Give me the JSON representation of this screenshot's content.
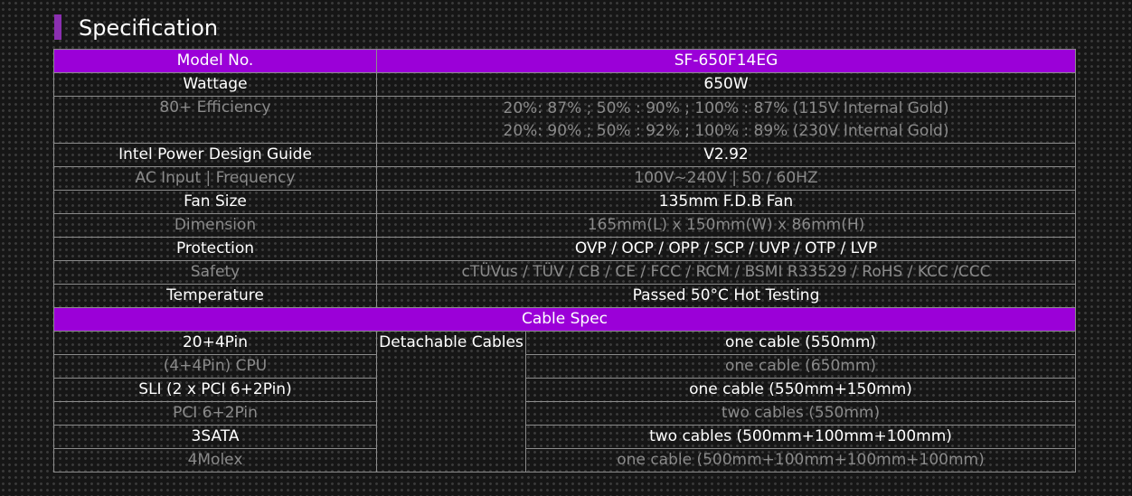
{
  "title": "Specification",
  "colors": {
    "accent": "#9b00d8",
    "bright_text": "#ffffff",
    "dim_text": "#8a8a8a"
  },
  "spec_rows": [
    {
      "label": "Model No.",
      "value": [
        "SF-650F14EG"
      ]
    },
    {
      "label": "Wattage",
      "value": [
        "650W"
      ]
    },
    {
      "label": "80+ Efficiency",
      "value": [
        "20%: 87% ; 50% : 90% ; 100% : 87% (115V Internal Gold)",
        "20%: 90% ; 50% : 92% ; 100% : 89% (230V Internal Gold)"
      ]
    },
    {
      "label": "Intel Power Design Guide",
      "value": [
        "V2.92"
      ]
    },
    {
      "label": "AC Input | Frequency",
      "value": [
        "100V~240V | 50 / 60HZ"
      ]
    },
    {
      "label": "Fan Size",
      "value": [
        "135mm F.D.B Fan"
      ]
    },
    {
      "label": "Dimension",
      "value": [
        "165mm(L) x 150mm(W) x 86mm(H)"
      ]
    },
    {
      "label": "Protection",
      "value": [
        "OVP / OCP / OPP / SCP / UVP / OTP / LVP"
      ]
    },
    {
      "label": "Safety",
      "value": [
        "cTÜVus / TÜV / CB / CE / FCC / RCM / BSMI R33529 / RoHS / KCC /CCC"
      ]
    },
    {
      "label": "Temperature",
      "value": [
        "Passed 50°C Hot Testing"
      ]
    }
  ],
  "cable_header": "Cable Spec",
  "cable_group_label": "Detachable Cables",
  "cable_rows": [
    {
      "connector": "20+4Pin",
      "spec": "one cable (550mm)"
    },
    {
      "connector": "(4+4Pin) CPU",
      "spec": "one cable (650mm)"
    },
    {
      "connector": "SLI (2 x PCI 6+2Pin)",
      "spec": "one cable (550mm+150mm)"
    },
    {
      "connector": "PCI 6+2Pin",
      "spec": "two cables (550mm)"
    },
    {
      "connector": "3SATA",
      "spec": "two cables (500mm+100mm+100mm)"
    },
    {
      "connector": "4Molex",
      "spec": "one cable (500mm+100mm+100mm+100mm)"
    }
  ]
}
